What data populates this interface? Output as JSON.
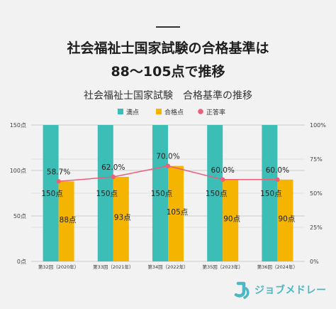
{
  "headline": {
    "line1": "社会福祉士国家試験の合格基準は",
    "line2": "88～105点で推移"
  },
  "colors": {
    "max_score": "#3cbdb5",
    "pass_score": "#f5b400",
    "accuracy_rate": "#ee5e78",
    "background": "#f2f2f2",
    "brand": "#4bb8c4"
  },
  "chart_data": {
    "type": "bar",
    "title": "社会福祉士国家試験　合格基準の推移",
    "categories": [
      "第32回（2020年）",
      "第33回（2021年）",
      "第34回（2022年）",
      "第35回（2023年）",
      "第36回（2024年）"
    ],
    "series": [
      {
        "name": "満点",
        "kind": "bar",
        "axis": "left",
        "values": [
          150,
          150,
          150,
          150,
          150
        ],
        "labels": [
          "150点",
          "150点",
          "150点",
          "150点",
          "150点"
        ]
      },
      {
        "name": "合格点",
        "kind": "bar",
        "axis": "left",
        "values": [
          88,
          93,
          105,
          90,
          90
        ],
        "labels": [
          "88点",
          "93点",
          "105点",
          "90点",
          "90点"
        ]
      },
      {
        "name": "正答率",
        "kind": "line",
        "axis": "right",
        "values": [
          58.7,
          62.0,
          70.0,
          60.0,
          60.0
        ],
        "labels": [
          "58.7%",
          "62.0%",
          "70.0%",
          "60.0%",
          "60.0%"
        ]
      }
    ],
    "y_left": {
      "range": [
        0,
        150
      ],
      "ticks": [
        0,
        50,
        100,
        150
      ],
      "tick_labels": [
        "0点",
        "50点",
        "100点",
        "150点"
      ]
    },
    "y_right": {
      "range": [
        0,
        100
      ],
      "ticks": [
        0,
        25,
        50,
        75,
        100
      ],
      "tick_labels": [
        "0%",
        "25%",
        "50%",
        "75%",
        "100%"
      ]
    },
    "grid": true,
    "legend_position": "top"
  },
  "brand": {
    "name": "ジョブメドレー"
  }
}
